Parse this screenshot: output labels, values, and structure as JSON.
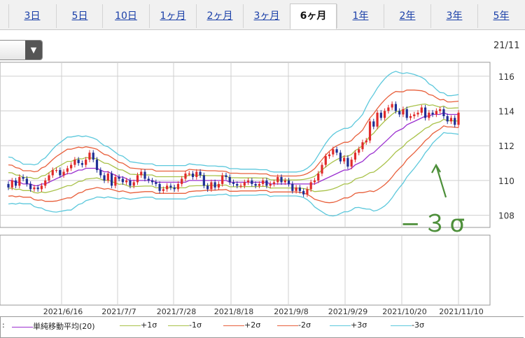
{
  "tabs": [
    {
      "label": "3日",
      "active": false
    },
    {
      "label": "5日",
      "active": false
    },
    {
      "label": "10日",
      "active": false
    },
    {
      "label": "1ヶ月",
      "active": false
    },
    {
      "label": "2ヶ月",
      "active": false
    },
    {
      "label": "3ヶ月",
      "active": false
    },
    {
      "label": "6ヶ月",
      "active": true
    },
    {
      "label": "1年",
      "active": false
    },
    {
      "label": "2年",
      "active": false
    },
    {
      "label": "3年",
      "active": false
    },
    {
      "label": "5年",
      "active": false
    }
  ],
  "header": {
    "date_label": "21/11"
  },
  "dropdown": {
    "arrow": "▼"
  },
  "annotation": "−３σ",
  "legend": {
    "prefix": ":",
    "items": [
      {
        "label": "単純移動平均(20)",
        "color": "#9b30d0"
      },
      {
        "label": "+1σ",
        "color": "#a9c24a"
      },
      {
        "label": "-1σ",
        "color": "#a9c24a"
      },
      {
        "label": "+2σ",
        "color": "#e8603c"
      },
      {
        "label": "-2σ",
        "color": "#e8603c"
      },
      {
        "label": "+3σ",
        "color": "#5cc8dc"
      },
      {
        "label": "-3σ",
        "color": "#5cc8dc"
      }
    ]
  },
  "chart_data": {
    "type": "line",
    "subtype": "candlestick with bollinger bands",
    "ylim": [
      107.3,
      116.8
    ],
    "yticks": [
      108,
      110,
      112,
      114,
      116
    ],
    "xticks": [
      "2021/6/16",
      "2021/7/7",
      "2021/7/28",
      "2021/8/18",
      "2021/9/8",
      "2021/9/29",
      "2021/10/20",
      "2021/11/10"
    ],
    "grid": true,
    "colors": {
      "up": "#e02a2a",
      "down": "#1f2f95",
      "ma": "#9b30d0",
      "s1": "#a9c24a",
      "s2": "#e8603c",
      "s3": "#5cc8dc"
    },
    "close": [
      109.6,
      110.0,
      109.7,
      110.2,
      110.1,
      109.8,
      109.5,
      109.6,
      109.5,
      109.7,
      110.0,
      110.3,
      110.6,
      110.6,
      110.3,
      110.5,
      110.7,
      110.9,
      111.2,
      111.0,
      110.9,
      111.2,
      111.6,
      111.2,
      110.6,
      110.3,
      110.0,
      110.4,
      109.7,
      110.2,
      110.1,
      109.9,
      110.0,
      109.7,
      109.9,
      110.3,
      110.5,
      110.1,
      110.0,
      109.9,
      109.8,
      109.4,
      109.5,
      109.7,
      109.6,
      109.5,
      109.8,
      110.1,
      110.4,
      110.4,
      110.2,
      110.5,
      110.3,
      109.7,
      109.5,
      109.9,
      109.6,
      109.8,
      110.3,
      110.2,
      109.9,
      109.8,
      109.7,
      109.7,
      109.9,
      110.0,
      109.8,
      109.7,
      109.8,
      110.0,
      109.7,
      109.8,
      109.9,
      110.2,
      109.9,
      110.0,
      109.8,
      109.4,
      109.6,
      109.4,
      109.2,
      109.5,
      109.9,
      110.0,
      110.4,
      110.9,
      111.4,
      111.5,
      111.8,
      111.6,
      111.1,
      111.3,
      110.8,
      111.2,
      111.6,
      111.8,
      112.2,
      112.3,
      113.4,
      113.1,
      113.9,
      113.6,
      114.0,
      114.2,
      114.4,
      114.0,
      113.8,
      114.1,
      113.6,
      113.7,
      113.8,
      113.9,
      114.2,
      113.6,
      113.9,
      113.8,
      114.0,
      114.1,
      113.7,
      113.4,
      113.6,
      113.2,
      113.9
    ],
    "ma": [
      110.0,
      110.0,
      109.9,
      109.9,
      109.8,
      109.8,
      109.8,
      109.7,
      109.7,
      109.8,
      109.8,
      109.9,
      110.0,
      110.1,
      110.2,
      110.3,
      110.4,
      110.4,
      110.5,
      110.6,
      110.6,
      110.7,
      110.7,
      110.7,
      110.7,
      110.6,
      110.5,
      110.5,
      110.4,
      110.3,
      110.2,
      110.2,
      110.1,
      110.0,
      110.0,
      110.0,
      110.0,
      110.0,
      110.0,
      110.0,
      109.9,
      109.9,
      109.9,
      109.9,
      109.9,
      109.9,
      109.9,
      109.9,
      109.9,
      110.0,
      110.0,
      110.0,
      110.0,
      110.0,
      110.0,
      110.0,
      110.0,
      110.0,
      110.0,
      110.0,
      109.9,
      109.9,
      109.9,
      109.9,
      109.9,
      109.9,
      109.9,
      109.9,
      109.9,
      109.9,
      109.9,
      109.8,
      109.8,
      109.8,
      109.8,
      109.8,
      109.8,
      109.8,
      109.8,
      109.8,
      109.8,
      109.8,
      109.8,
      109.8,
      109.9,
      110.0,
      110.1,
      110.2,
      110.3,
      110.4,
      110.5,
      110.6,
      110.6,
      110.7,
      110.9,
      111.0,
      111.1,
      111.3,
      111.5,
      111.6,
      111.8,
      112.0,
      112.2,
      112.4,
      112.6,
      112.8,
      112.9,
      113.0,
      113.2,
      113.3,
      113.4,
      113.5,
      113.6,
      113.7,
      113.7,
      113.8,
      113.8,
      113.8,
      113.9,
      113.8,
      113.8,
      113.8,
      113.8
    ],
    "sigma": [
      0.45,
      0.44,
      0.42,
      0.4,
      0.38,
      0.38,
      0.38,
      0.4,
      0.42,
      0.46,
      0.5,
      0.55,
      0.6,
      0.64,
      0.66,
      0.68,
      0.7,
      0.7,
      0.68,
      0.66,
      0.64,
      0.62,
      0.6,
      0.58,
      0.55,
      0.52,
      0.5,
      0.48,
      0.46,
      0.44,
      0.42,
      0.4,
      0.38,
      0.36,
      0.35,
      0.34,
      0.33,
      0.32,
      0.32,
      0.32,
      0.32,
      0.32,
      0.32,
      0.32,
      0.32,
      0.32,
      0.32,
      0.32,
      0.32,
      0.32,
      0.31,
      0.3,
      0.3,
      0.29,
      0.28,
      0.28,
      0.28,
      0.27,
      0.27,
      0.26,
      0.26,
      0.26,
      0.26,
      0.25,
      0.25,
      0.25,
      0.25,
      0.25,
      0.24,
      0.24,
      0.24,
      0.24,
      0.23,
      0.23,
      0.23,
      0.23,
      0.23,
      0.23,
      0.23,
      0.24,
      0.26,
      0.3,
      0.36,
      0.44,
      0.52,
      0.6,
      0.68,
      0.74,
      0.78,
      0.8,
      0.8,
      0.8,
      0.8,
      0.8,
      0.82,
      0.85,
      0.9,
      0.98,
      1.05,
      1.12,
      1.17,
      1.2,
      1.22,
      1.22,
      1.2,
      1.16,
      1.1,
      1.05,
      1.0,
      0.95,
      0.9,
      0.84,
      0.78,
      0.7,
      0.62,
      0.55,
      0.48,
      0.42,
      0.38,
      0.36,
      0.36,
      0.37,
      0.38
    ]
  }
}
